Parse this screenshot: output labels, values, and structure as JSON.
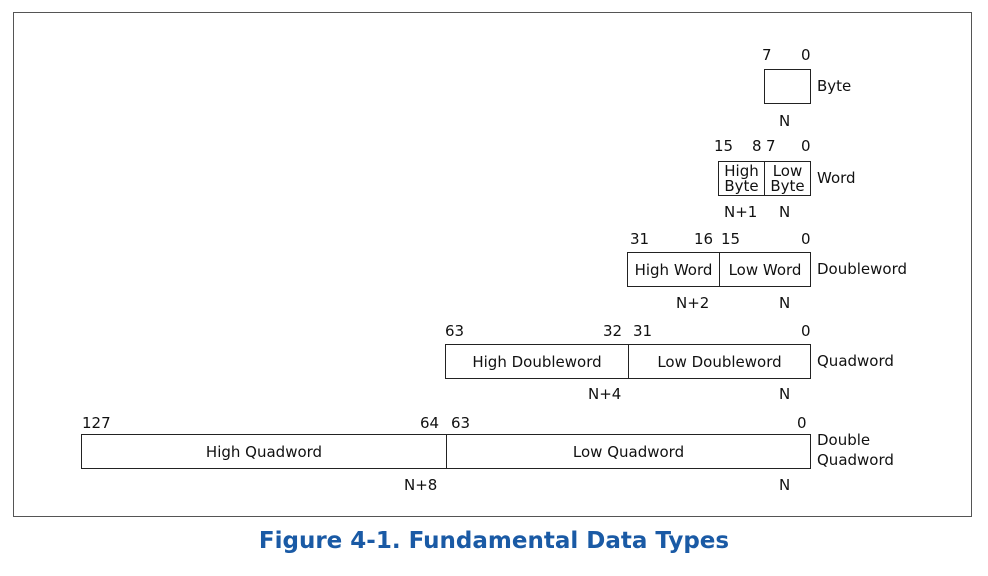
{
  "figure_caption": "Figure 4-1.  Fundamental Data Types",
  "byte": {
    "name": "Byte",
    "bits": [
      "7",
      "0"
    ],
    "addresses": [
      "N"
    ]
  },
  "word": {
    "name": "Word",
    "bits": [
      "15",
      "8",
      "7",
      "0"
    ],
    "cells": [
      {
        "line1": "High",
        "line2": "Byte"
      },
      {
        "line1": "Low",
        "line2": "Byte"
      }
    ],
    "addresses": [
      "N+1",
      "N"
    ]
  },
  "doubleword": {
    "name": "Doubleword",
    "bits": [
      "31",
      "16",
      "15",
      "0"
    ],
    "cells": [
      "High Word",
      "Low Word"
    ],
    "addresses": [
      "N+2",
      "N"
    ]
  },
  "quadword": {
    "name": "Quadword",
    "bits": [
      "63",
      "32",
      "31",
      "0"
    ],
    "cells": [
      "High Doubleword",
      "Low Doubleword"
    ],
    "addresses": [
      "N+4",
      "N"
    ]
  },
  "double_quadword": {
    "name_line1": "Double",
    "name_line2": "Quadword",
    "bits": [
      "127",
      "64",
      "63",
      "0"
    ],
    "cells": [
      "High Quadword",
      "Low Quadword"
    ],
    "addresses": [
      "N+8",
      "N"
    ]
  }
}
